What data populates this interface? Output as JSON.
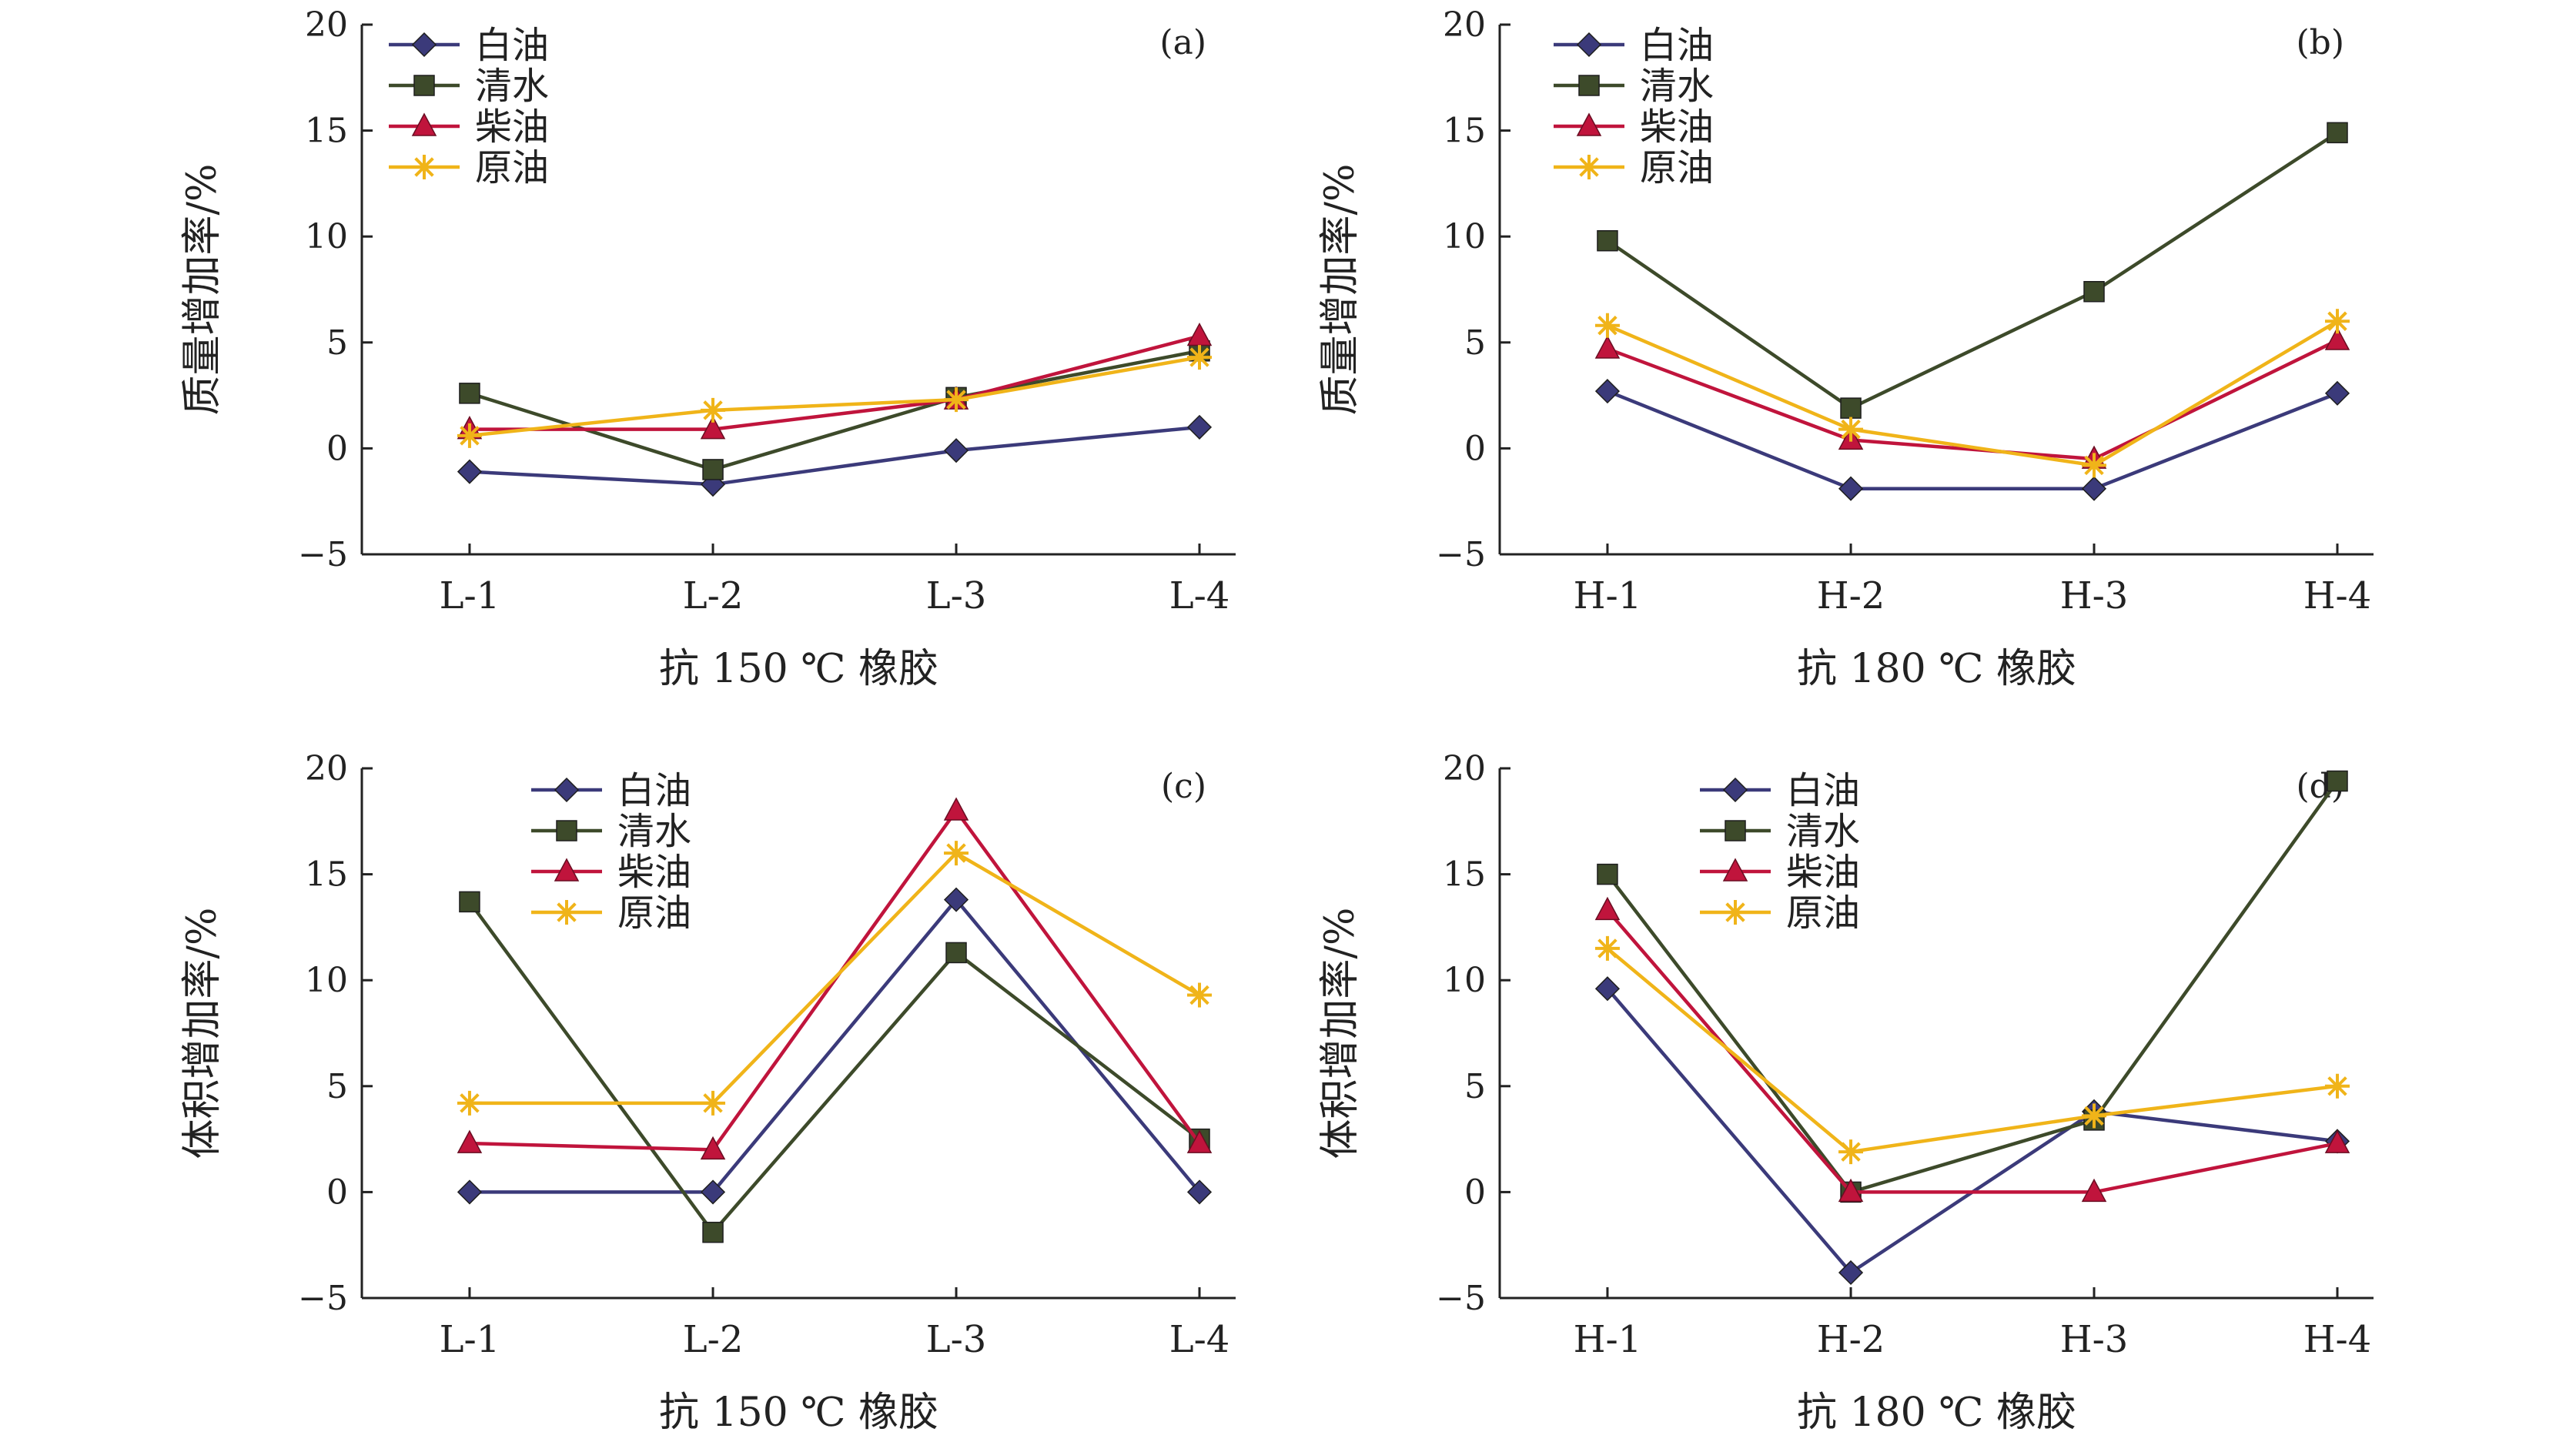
{
  "chart_data": [
    {
      "type": "line",
      "panel_label": "(a)",
      "categories": [
        "L-1",
        "L-2",
        "L-3",
        "L-4"
      ],
      "xlabel": "抗 150 ℃ 橡胶",
      "ylabel": "质量增加率/%",
      "ylim": [
        -5,
        20
      ],
      "yticks": [
        "20",
        "15",
        "10",
        "5",
        "0",
        "−5"
      ],
      "legend_position": "top-left",
      "series": [
        {
          "name": "白油",
          "color": "#3b3a7a",
          "marker": "diamond",
          "values": [
            -1.1,
            -1.7,
            -0.1,
            1.0
          ]
        },
        {
          "name": "清水",
          "color": "#3d4a2a",
          "marker": "square",
          "values": [
            2.6,
            -1.0,
            2.4,
            4.6
          ]
        },
        {
          "name": "柴油",
          "color": "#c0143c",
          "marker": "triangle",
          "values": [
            0.9,
            0.9,
            2.3,
            5.3
          ]
        },
        {
          "name": "原油",
          "color": "#f0b419",
          "marker": "star",
          "values": [
            0.6,
            1.8,
            2.3,
            4.3
          ]
        }
      ]
    },
    {
      "type": "line",
      "panel_label": "(b)",
      "categories": [
        "H-1",
        "H-2",
        "H-3",
        "H-4"
      ],
      "xlabel": "抗 180 ℃ 橡胶",
      "ylabel": "质量增加率/%",
      "ylim": [
        -5,
        20
      ],
      "yticks": [
        "20",
        "15",
        "10",
        "5",
        "0",
        "−5"
      ],
      "legend_position": "top-left",
      "series": [
        {
          "name": "白油",
          "color": "#3b3a7a",
          "marker": "diamond",
          "values": [
            2.7,
            -1.9,
            -1.9,
            2.6
          ]
        },
        {
          "name": "清水",
          "color": "#3d4a2a",
          "marker": "square",
          "values": [
            9.8,
            1.9,
            7.4,
            14.9
          ]
        },
        {
          "name": "柴油",
          "color": "#c0143c",
          "marker": "triangle",
          "values": [
            4.7,
            0.4,
            -0.5,
            5.1
          ]
        },
        {
          "name": "原油",
          "color": "#f0b419",
          "marker": "star",
          "values": [
            5.8,
            0.9,
            -0.8,
            6.0
          ]
        }
      ]
    },
    {
      "type": "line",
      "panel_label": "(c)",
      "categories": [
        "L-1",
        "L-2",
        "L-3",
        "L-4"
      ],
      "xlabel": "抗 150 ℃ 橡胶",
      "ylabel": "体积增加率/%",
      "ylim": [
        -5,
        20
      ],
      "yticks": [
        "20",
        "15",
        "10",
        "5",
        "0",
        "−5"
      ],
      "legend_position": "top-center",
      "series": [
        {
          "name": "白油",
          "color": "#3b3a7a",
          "marker": "diamond",
          "values": [
            0.0,
            0.0,
            13.8,
            0.0
          ]
        },
        {
          "name": "清水",
          "color": "#3d4a2a",
          "marker": "square",
          "values": [
            13.7,
            -1.9,
            11.3,
            2.5
          ]
        },
        {
          "name": "柴油",
          "color": "#c0143c",
          "marker": "triangle",
          "values": [
            2.3,
            2.0,
            18.0,
            2.3
          ]
        },
        {
          "name": "原油",
          "color": "#f0b419",
          "marker": "star",
          "values": [
            4.2,
            4.2,
            16.0,
            9.3
          ]
        }
      ]
    },
    {
      "type": "line",
      "panel_label": "(d)",
      "categories": [
        "H-1",
        "H-2",
        "H-3",
        "H-4"
      ],
      "xlabel": "抗 180 ℃ 橡胶",
      "ylabel": "体积增加率/%",
      "ylim": [
        -5,
        20
      ],
      "yticks": [
        "20",
        "15",
        "10",
        "5",
        "0",
        "−5"
      ],
      "legend_position": "top-center",
      "series": [
        {
          "name": "白油",
          "color": "#3b3a7a",
          "marker": "diamond",
          "values": [
            9.6,
            -3.8,
            3.8,
            2.4
          ]
        },
        {
          "name": "清水",
          "color": "#3d4a2a",
          "marker": "square",
          "values": [
            15.0,
            0.0,
            3.4,
            19.4
          ]
        },
        {
          "name": "柴油",
          "color": "#c0143c",
          "marker": "triangle",
          "values": [
            13.3,
            0.0,
            0.0,
            2.3
          ]
        },
        {
          "name": "原油",
          "color": "#f0b419",
          "marker": "star",
          "values": [
            11.5,
            1.9,
            3.6,
            5.0
          ]
        }
      ]
    }
  ]
}
